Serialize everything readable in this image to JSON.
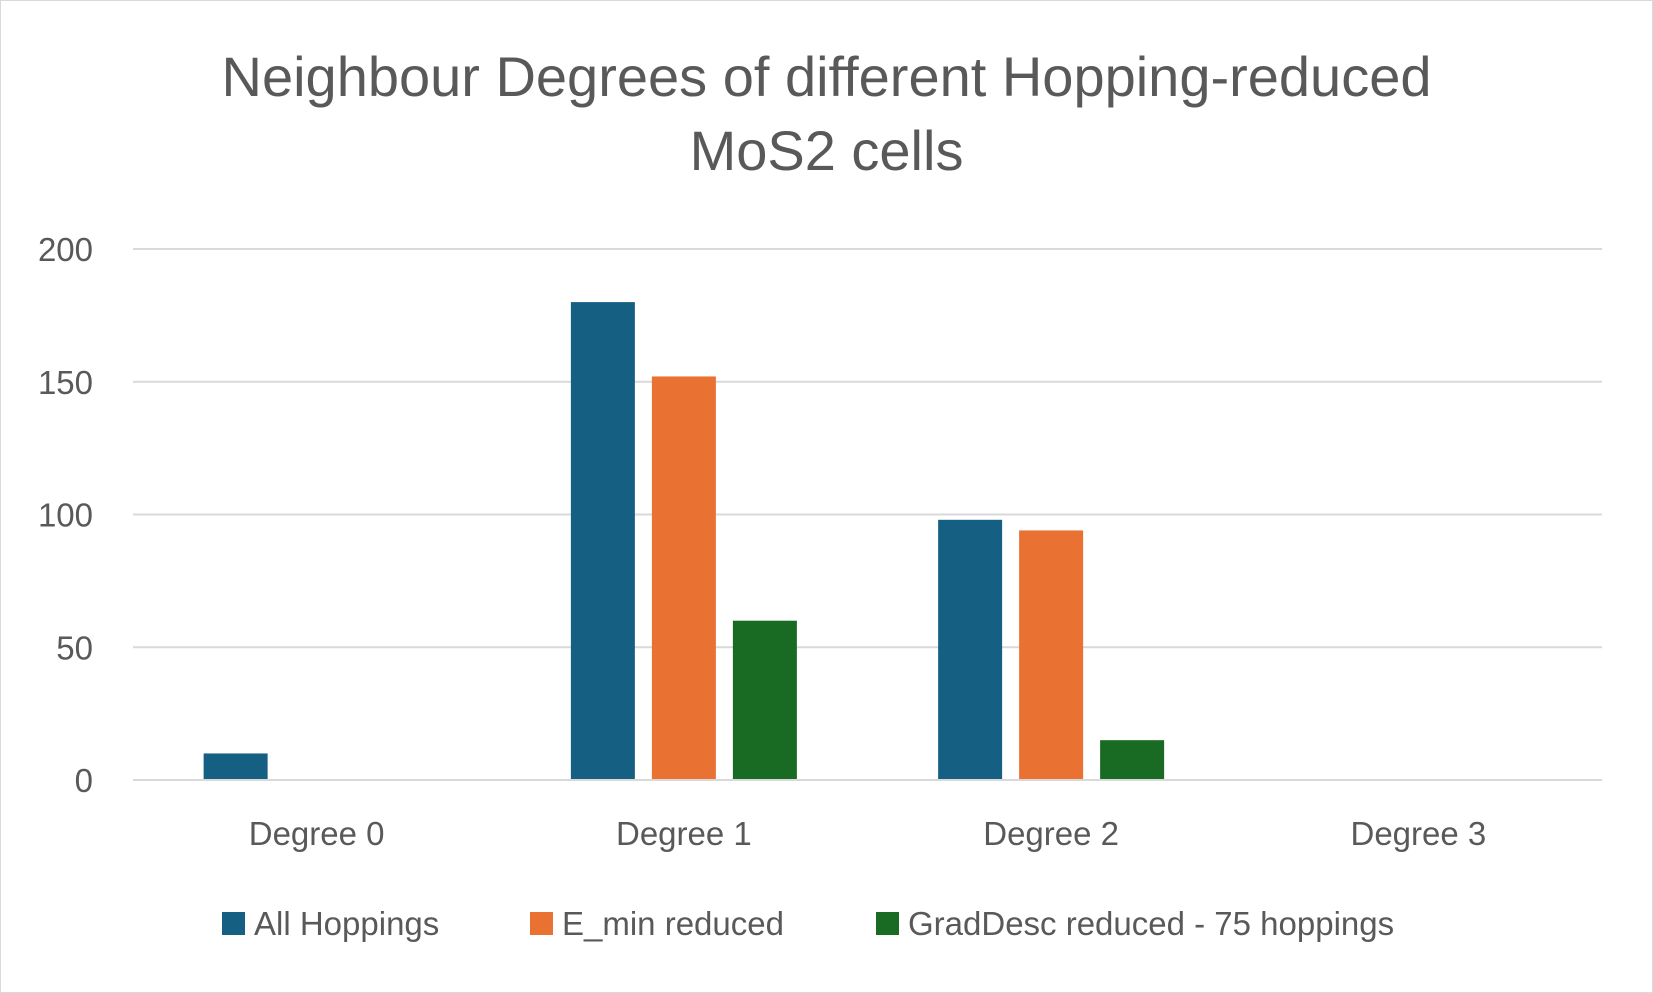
{
  "chart_data": {
    "type": "bar",
    "title": "Neighbour Degrees of different Hopping-reduced MoS2 cells",
    "title_lines": [
      "Neighbour Degrees of different Hopping-reduced",
      "MoS2 cells"
    ],
    "xlabel": "",
    "ylabel": "",
    "categories": [
      "Degree 0",
      "Degree 1",
      "Degree 2",
      "Degree 3"
    ],
    "series": [
      {
        "name": "All Hoppings",
        "color": "#156082",
        "values": [
          10,
          180,
          98,
          0
        ]
      },
      {
        "name": "E_min reduced",
        "color": "#E97132",
        "values": [
          0,
          152,
          94,
          0
        ]
      },
      {
        "name": "GradDesc reduced - 75 hoppings",
        "color": "#196B24",
        "values": [
          0,
          60,
          15,
          0
        ]
      }
    ],
    "ylim": [
      0,
      200
    ],
    "yticks": [
      0,
      50,
      100,
      150,
      200
    ],
    "grid": true,
    "legend_position": "bottom"
  }
}
